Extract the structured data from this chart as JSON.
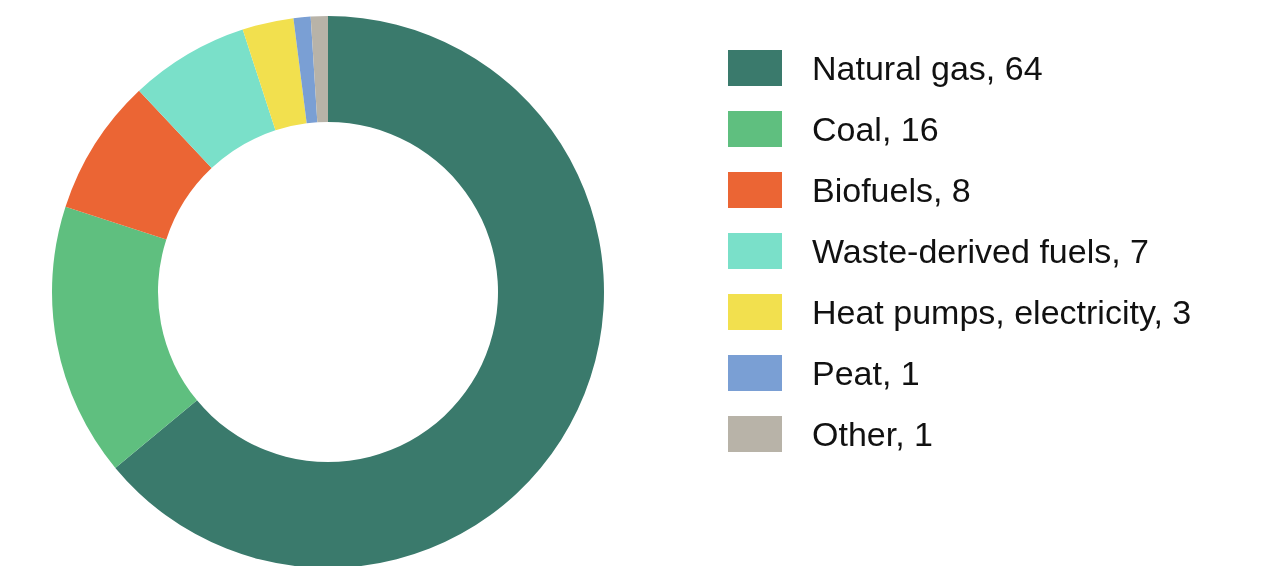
{
  "chart_data": {
    "type": "donut",
    "categories": [
      "Natural gas, 64",
      "Coal, 16",
      "Biofuels, 8",
      "Waste-derived fuels, 7",
      "Heat pumps, electricity, 3",
      "Peat, 1",
      "Other, 1"
    ],
    "values": [
      64,
      16,
      8,
      7,
      3,
      1,
      1
    ],
    "colors": [
      "#3a7a6c",
      "#5fbf7f",
      "#eb6534",
      "#7ae0c9",
      "#f2e04e",
      "#7a9fd4",
      "#b8b3a8"
    ],
    "legend": "right"
  }
}
